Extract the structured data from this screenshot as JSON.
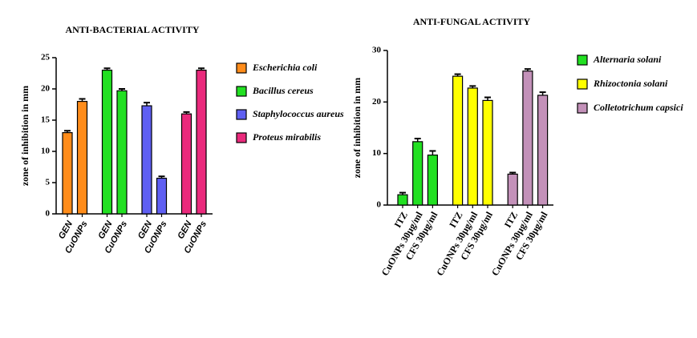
{
  "chart_data": [
    {
      "type": "bar",
      "title": "ANTI-BACTERIAL ACTIVITY",
      "y_label": "zone of inhibition in mm",
      "categories": [
        "GEN",
        "CuONPs",
        "GEN",
        "CuONPs",
        "GEN",
        "CuONPs",
        "GEN",
        "CuONPs"
      ],
      "series": [
        {
          "name": "Escherichia coli",
          "color": "#ff8c1a",
          "values": [
            13,
            18,
            null,
            null,
            null,
            null,
            null,
            null
          ],
          "errors": [
            0.3,
            0.4,
            null,
            null,
            null,
            null,
            null,
            null
          ]
        },
        {
          "name": "Bacillus cereus",
          "color": "#22e022",
          "values": [
            null,
            null,
            23,
            19.7,
            null,
            null,
            null,
            null
          ],
          "errors": [
            null,
            null,
            0.3,
            0.3,
            null,
            null,
            null,
            null
          ]
        },
        {
          "name": "Staphylococcus aureus",
          "color": "#5f5ff2",
          "values": [
            null,
            null,
            null,
            null,
            17.3,
            5.7,
            null,
            null
          ],
          "errors": [
            null,
            null,
            null,
            null,
            0.5,
            0.3,
            null,
            null
          ]
        },
        {
          "name": "Proteus mirabilis",
          "color": "#ea2a7c",
          "values": [
            null,
            null,
            null,
            null,
            null,
            null,
            16,
            23
          ],
          "errors": [
            null,
            null,
            null,
            null,
            null,
            null,
            0.3,
            0.3
          ]
        }
      ],
      "ylim": [
        0,
        25
      ],
      "yticks": [
        0,
        5,
        10,
        15,
        20,
        25
      ],
      "legend": "right"
    },
    {
      "type": "bar",
      "title": "ANTI-FUNGAL ACTIVITY",
      "y_label": "zone of inhibition in mm",
      "categories": [
        "ITZ",
        "CuONPs 30µg/ml",
        "CFS 30µg/ml",
        "ITZ",
        "CuONPs 30µg/ml",
        "CFS 30µg/ml",
        "ITZ",
        "CuONPs 30µg/ml",
        "CFS 30µg/ml"
      ],
      "series": [
        {
          "name": "Alternaria solani",
          "color": "#22e022",
          "values": [
            2,
            12.3,
            9.7,
            null,
            null,
            null,
            null,
            null,
            null
          ],
          "errors": [
            0.4,
            0.6,
            0.8,
            null,
            null,
            null,
            null,
            null,
            null
          ]
        },
        {
          "name": "Rhizoctonia solani",
          "color": "#ffff00",
          "values": [
            null,
            null,
            null,
            25,
            22.7,
            20.3,
            null,
            null,
            null
          ],
          "errors": [
            null,
            null,
            null,
            0.4,
            0.4,
            0.6,
            null,
            null,
            null
          ]
        },
        {
          "name": "Colletotrichum capsici",
          "color": "#c391b9",
          "values": [
            null,
            null,
            null,
            null,
            null,
            null,
            6,
            26,
            21.3
          ],
          "errors": [
            null,
            null,
            null,
            null,
            null,
            null,
            0.3,
            0.4,
            0.6
          ]
        }
      ],
      "ylim": [
        0,
        30
      ],
      "yticks": [
        0,
        10,
        20,
        30
      ],
      "legend": "right"
    }
  ]
}
